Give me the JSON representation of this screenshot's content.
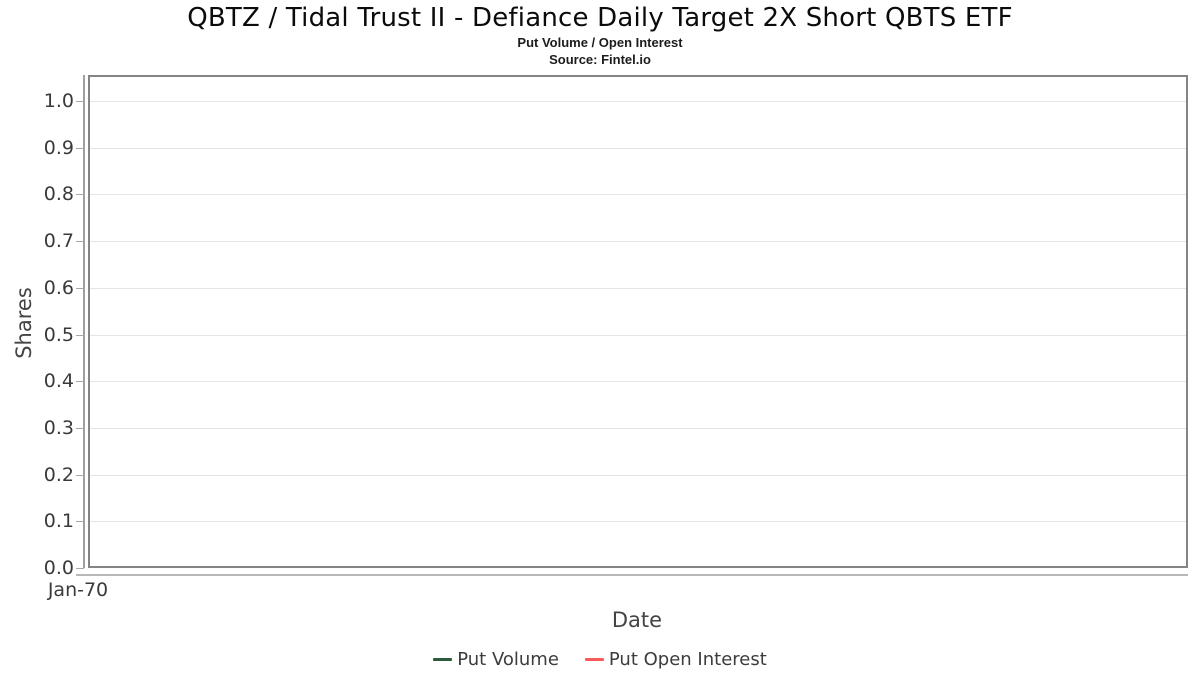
{
  "header": {
    "title": "QBTZ / Tidal Trust II - Defiance Daily Target 2X Short QBTS ETF",
    "subtitle": "Put Volume / Open Interest",
    "source": "Source: Fintel.io"
  },
  "chart_data": {
    "type": "line",
    "title": "QBTZ / Tidal Trust II - Defiance Daily Target 2X Short QBTS ETF",
    "subtitle": "Put Volume / Open Interest",
    "source": "Source: Fintel.io",
    "xlabel": "Date",
    "ylabel": "Shares",
    "x_ticks": [
      "Jan-70"
    ],
    "y_ticks": [
      "0.0",
      "0.1",
      "0.2",
      "0.3",
      "0.4",
      "0.5",
      "0.6",
      "0.7",
      "0.8",
      "0.9",
      "1.0"
    ],
    "ylim": [
      0.0,
      1.05
    ],
    "grid": true,
    "legend_position": "bottom",
    "series": [
      {
        "name": "Put Volume",
        "color": "#2d5c3c",
        "x": [],
        "values": []
      },
      {
        "name": "Put Open Interest",
        "color": "#fa5a5a",
        "x": [],
        "values": []
      }
    ]
  },
  "colors": {
    "background": "#ffffff",
    "plot_border": "#848484",
    "gridline": "#e5e5e5",
    "y_axis_line": "#a0a0a0",
    "x_axis_line": "#b8b8b8",
    "tick_mark": "#a8a8a8",
    "tick_label": "#3a3a3a",
    "axis_title": "#444444",
    "title_text": "#0b0b0b"
  }
}
